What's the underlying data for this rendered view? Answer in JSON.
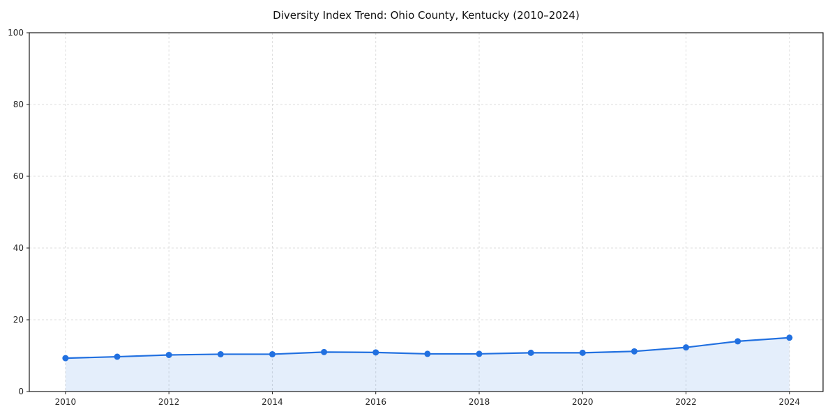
{
  "chart_data": {
    "type": "line",
    "title": "Diversity Index Trend: Ohio County, Kentucky (2010–2024)",
    "xlabel": "",
    "ylabel": "",
    "x": [
      2010,
      2011,
      2012,
      2013,
      2014,
      2015,
      2016,
      2017,
      2018,
      2019,
      2020,
      2021,
      2022,
      2023,
      2024
    ],
    "series": [
      {
        "name": "Diversity Index",
        "values": [
          9.3,
          9.7,
          10.2,
          10.4,
          10.4,
          11.0,
          10.9,
          10.5,
          10.5,
          10.8,
          10.8,
          11.2,
          12.3,
          14.0,
          15.0
        ]
      }
    ],
    "ylim": [
      0,
      100
    ],
    "xticks": [
      2010,
      2012,
      2014,
      2016,
      2018,
      2020,
      2022,
      2024
    ],
    "yticks": [
      0,
      20,
      40,
      60,
      80,
      100
    ],
    "grid": true,
    "legend_position": "none",
    "line_color": "#2170e0",
    "marker_color": "#2170e0",
    "fill_color": "rgba(33, 112, 224, 0.12)",
    "grid_color": "#dddddd",
    "spine_color": "#1a1a1a",
    "tick_label_color": "#222222"
  }
}
